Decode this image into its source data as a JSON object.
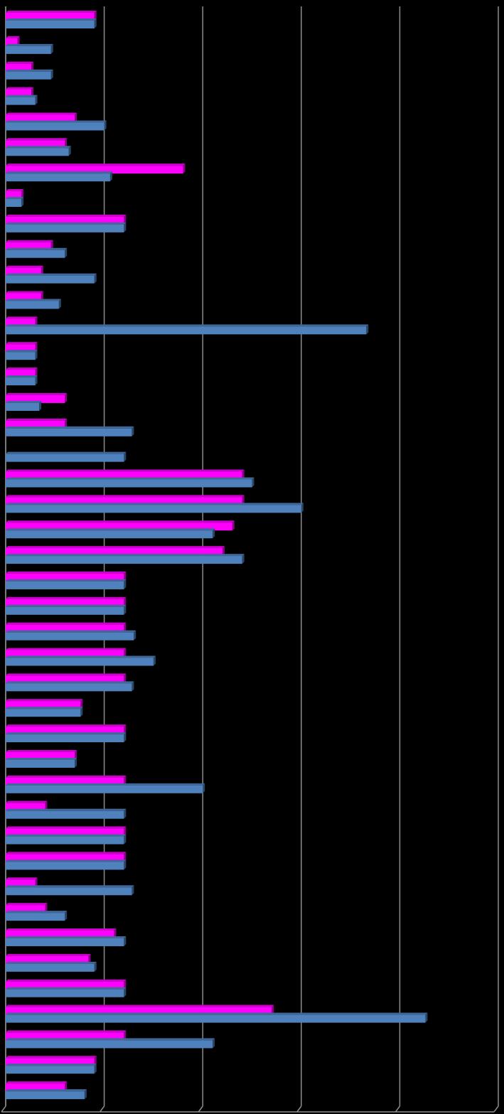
{
  "chart_data": {
    "type": "bar",
    "orientation": "horizontal",
    "title": "",
    "xlabel": "",
    "ylabel": "",
    "xlim": [
      0,
      25
    ],
    "grid": true,
    "legend": "none",
    "colors": {
      "background": "#000000",
      "gridline": "#8c8c8c",
      "series_a": "#ff00ff",
      "series_b": "#4f81bd"
    },
    "series": [
      {
        "values": [
          4.5,
          0.6,
          1.3,
          1.3,
          3.5,
          3.0,
          9.0,
          0.8,
          6.0,
          2.3,
          1.8,
          1.8,
          1.5,
          1.5,
          1.5,
          3.0,
          3.0,
          0.0,
          12.0,
          12.0,
          11.5,
          11.0,
          6.0,
          6.0,
          6.0,
          6.0,
          6.0,
          3.8,
          6.0,
          3.5,
          6.0,
          2.0,
          6.0,
          6.0,
          1.5,
          2.0,
          5.5,
          4.2,
          6.0,
          13.5,
          6.0,
          4.5,
          3.0
        ]
      },
      {
        "values": [
          4.5,
          2.3,
          2.3,
          1.5,
          5.0,
          3.2,
          5.3,
          0.8,
          6.0,
          3.0,
          4.5,
          2.7,
          18.3,
          1.5,
          1.5,
          1.7,
          6.4,
          6.0,
          12.5,
          15.0,
          10.5,
          12.0,
          6.0,
          6.0,
          6.5,
          7.5,
          6.4,
          3.8,
          6.0,
          3.5,
          10.0,
          6.0,
          6.0,
          6.0,
          6.4,
          3.0,
          6.0,
          4.5,
          6.0,
          21.3,
          10.5,
          4.5,
          4.0
        ]
      }
    ]
  }
}
